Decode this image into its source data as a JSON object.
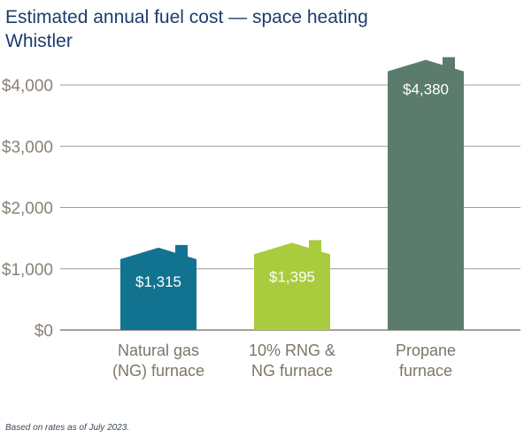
{
  "chart_data": {
    "type": "bar",
    "title": "Estimated annual fuel cost — space heating",
    "subtitle": "Whistler",
    "categories": [
      [
        "Natural gas",
        "(NG) furnace"
      ],
      [
        "10% RNG &",
        "NG furnace"
      ],
      [
        "Propane",
        "furnace"
      ]
    ],
    "values": [
      1315,
      1395,
      4380
    ],
    "value_labels": [
      "$1,315",
      "$1,395",
      "$4,380"
    ],
    "yticks": [
      0,
      1000,
      2000,
      3000,
      4000
    ],
    "ytick_labels": [
      "$0",
      "$1,000",
      "$2,000",
      "$3,000",
      "$4,000"
    ],
    "ylim": [
      0,
      4380
    ],
    "grid": true,
    "colors": [
      "#127391",
      "#a9cc3e",
      "#5b7c6d"
    ]
  },
  "footnote": "Based on rates as of July 2023."
}
